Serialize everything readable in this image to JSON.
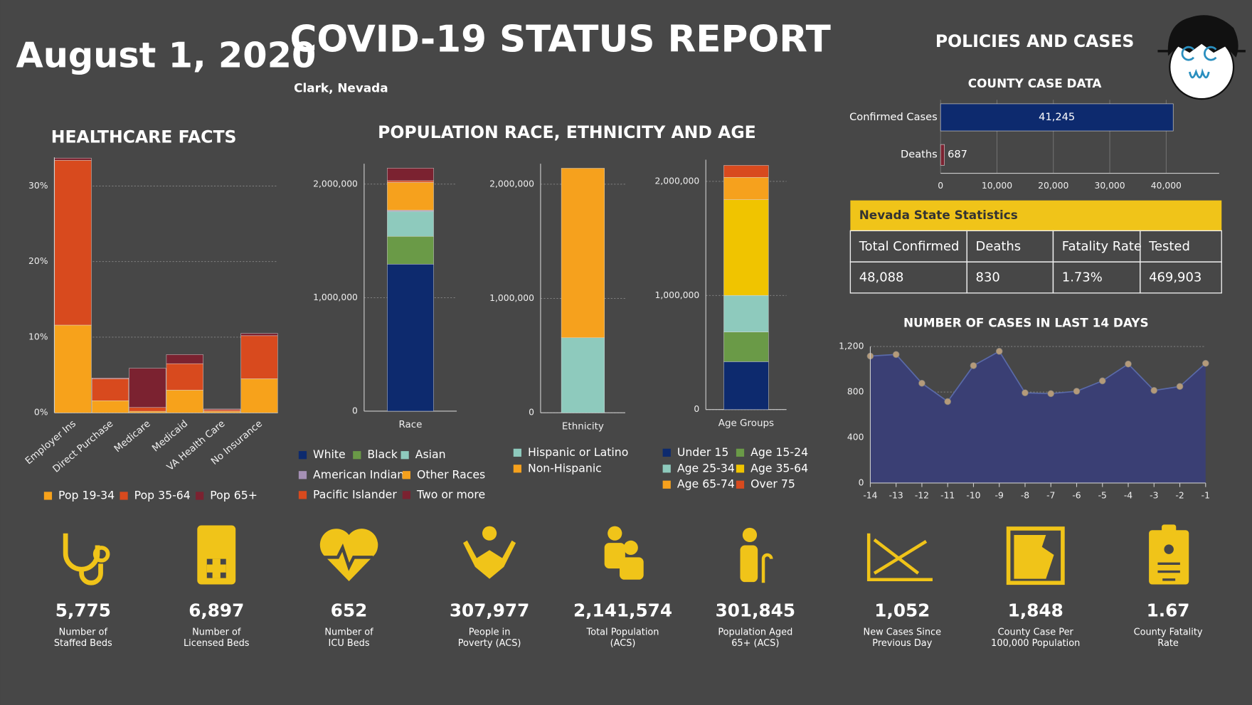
{
  "header": {
    "date": "August 1, 2020",
    "title": "COVID-19 STATUS REPORT",
    "location": "Clark, Nevada",
    "policies_title": "POLICIES AND CASES"
  },
  "population_title": "POPULATION RACE, ETHNICITY AND AGE",
  "chart_data": [
    {
      "type": "bar",
      "stacked": true,
      "title": "HEALTHCARE FACTS",
      "categories": [
        "Employer Ins",
        "Direct Purchase",
        "Medicare",
        "Medicaid",
        "VA Health Care",
        "No Insurance"
      ],
      "series": [
        {
          "name": "Pop 19-34",
          "color": "#f7a21b",
          "values": [
            11.6,
            1.6,
            0.2,
            3.0,
            0.2,
            4.5
          ]
        },
        {
          "name": "Pop 35-64",
          "color": "#d84a1e",
          "values": [
            21.8,
            2.9,
            0.5,
            3.5,
            0.2,
            5.7
          ]
        },
        {
          "name": "Pop 65+",
          "color": "#7b2230",
          "values": [
            0.3,
            0.1,
            5.2,
            1.2,
            0.1,
            0.3
          ]
        }
      ],
      "ylim": [
        0,
        33.8
      ],
      "yticks": [
        {
          "value": 0,
          "label": "0%"
        },
        {
          "value": 10,
          "label": "10%"
        },
        {
          "value": 20,
          "label": "20%"
        },
        {
          "value": 30,
          "label": "30%"
        }
      ],
      "grid": true
    },
    {
      "type": "bar",
      "stacked": true,
      "categories": [
        "Race"
      ],
      "series": [
        {
          "name": "White",
          "color": "#0d2a6e",
          "values": [
            1295000
          ]
        },
        {
          "name": "Black",
          "color": "#6a9a47",
          "values": [
            245000
          ]
        },
        {
          "name": "Asian",
          "color": "#8ecabd",
          "values": [
            220000
          ]
        },
        {
          "name": "American Indian",
          "color": "#a590b5",
          "values": [
            10000
          ]
        },
        {
          "name": "Other Races",
          "color": "#f6a11d",
          "values": [
            245000
          ]
        },
        {
          "name": "Pacific Islander",
          "color": "#d84a1e",
          "values": [
            15000
          ]
        },
        {
          "name": "Two or more",
          "color": "#7b2230",
          "values": [
            111000
          ]
        }
      ],
      "ylim": [
        0,
        2180000
      ],
      "yticks": [
        0,
        {
          "value": 1000000,
          "label": "1,000,000"
        },
        {
          "value": 2000000,
          "label": "2,000,000"
        }
      ],
      "grid": true
    },
    {
      "type": "bar",
      "stacked": true,
      "categories": [
        "Ethnicity"
      ],
      "series": [
        {
          "name": "Hispanic or Latino",
          "color": "#8ecabd",
          "values": [
            657000
          ]
        },
        {
          "name": "Non-Hispanic",
          "color": "#f6a11d",
          "values": [
            1483000
          ]
        }
      ],
      "ylim": [
        0,
        2180000
      ],
      "yticks": [
        0,
        {
          "value": 1000000,
          "label": "1,000,000"
        },
        {
          "value": 2000000,
          "label": "2,000,000"
        }
      ],
      "grid": true
    },
    {
      "type": "bar",
      "stacked": true,
      "categories": [
        "Age Groups"
      ],
      "series": [
        {
          "name": "Under 15",
          "color": "#0d2a6e",
          "values": [
            420000
          ]
        },
        {
          "name": "Age 15-24",
          "color": "#6a9a47",
          "values": [
            260000
          ]
        },
        {
          "name": "Age 25-34",
          "color": "#8ecabd",
          "values": [
            320000
          ]
        },
        {
          "name": "Age 35-64",
          "color": "#f0c400",
          "values": [
            840000
          ]
        },
        {
          "name": "Age 65-74",
          "color": "#f6a11d",
          "values": [
            195000
          ]
        },
        {
          "name": "Over 75",
          "color": "#d84a1e",
          "values": [
            105000
          ]
        }
      ],
      "ylim": [
        0,
        2190000
      ],
      "yticks": [
        0,
        {
          "value": 1000000,
          "label": "1,000,000"
        },
        {
          "value": 2000000,
          "label": "2,000,000"
        }
      ],
      "grid": true
    },
    {
      "type": "hbar",
      "title": "COUNTY CASE DATA",
      "categories": [
        "Confirmed Cases",
        "Deaths"
      ],
      "values": [
        41245,
        687
      ],
      "value_labels": [
        "41,245",
        "687"
      ],
      "colors": [
        "#0d2a6e",
        "#7b2230"
      ],
      "xlim": [
        0,
        49400
      ],
      "xticks": [
        0,
        {
          "value": 10000,
          "label": "10,000"
        },
        {
          "value": 20000,
          "label": "20,000"
        },
        {
          "value": 30000,
          "label": "30,000"
        },
        {
          "value": 40000,
          "label": "40,000"
        }
      ],
      "grid": true
    },
    {
      "type": "area",
      "title": "NUMBER OF CASES IN LAST 14 DAYS",
      "x": [
        -14,
        -13,
        -12,
        -11,
        -10,
        -9,
        -8,
        -7,
        -6,
        -5,
        -4,
        -3,
        -2,
        -1
      ],
      "values": [
        1116,
        1130,
        877,
        716,
        1032,
        1158,
        793,
        786,
        807,
        898,
        1046,
        814,
        849,
        1052
      ],
      "color": "#3a3f74",
      "line_color": "#5a6aa8",
      "marker_color": "#b49a7a",
      "xlim": [
        -14,
        -1
      ],
      "xticks": [
        -14,
        -13,
        -12,
        -11,
        -10,
        -9,
        -8,
        -7,
        -6,
        -5,
        -4,
        -3,
        -2,
        -1
      ],
      "ylim": [
        0,
        1200
      ],
      "yticks": [
        0,
        400,
        800,
        {
          "value": 1200,
          "label": "1,200"
        }
      ],
      "grid": true
    }
  ],
  "table": {
    "title": "Nevada State Statistics",
    "headers": [
      "Total Confirmed",
      "Deaths",
      "Fatality Rate",
      "Tested"
    ],
    "rows": [
      [
        "48,088",
        "830",
        "1.73%",
        "469,903"
      ]
    ]
  },
  "kpis": [
    {
      "value": "5,775",
      "label": [
        "Number of",
        "Staffed Beds"
      ]
    },
    {
      "value": "6,897",
      "label": [
        "Number of",
        "Licensed Beds"
      ]
    },
    {
      "value": "652",
      "label": [
        "Number of",
        "ICU Beds"
      ]
    },
    {
      "value": "307,977",
      "label": [
        "People in",
        "Poverty (ACS)"
      ]
    },
    {
      "value": "2,141,574",
      "label": [
        "Total Population",
        "(ACS)"
      ]
    },
    {
      "value": "301,845",
      "label": [
        "Population Aged",
        "65+ (ACS)"
      ]
    },
    {
      "value": "1,052",
      "label": [
        "New Cases Since",
        "Previous Day"
      ]
    },
    {
      "value": "1,848",
      "label": [
        "County Case Per",
        "100,000 Population"
      ]
    },
    {
      "value": "1.67",
      "label": [
        "County Fatality",
        "Rate"
      ]
    }
  ]
}
